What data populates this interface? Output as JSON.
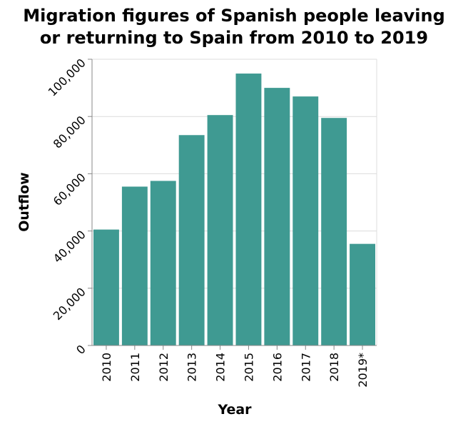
{
  "chart_data": {
    "type": "bar",
    "title_lines": [
      "Migration figures of Spanish people leaving",
      "or returning to Spain from 2010 to 2019"
    ],
    "xlabel": "Year",
    "ylabel": "Outflow",
    "categories": [
      "2010",
      "2011",
      "2012",
      "2013",
      "2014",
      "2015",
      "2016",
      "2017",
      "2018",
      "2019*"
    ],
    "values": [
      40500,
      55500,
      57500,
      73500,
      80500,
      95000,
      90000,
      87000,
      79500,
      35500
    ],
    "ylim": [
      0,
      100000
    ],
    "yticks": [
      0,
      20000,
      40000,
      60000,
      80000,
      100000
    ],
    "ytick_labels": [
      "0",
      "20,000",
      "40,000",
      "60,000",
      "80,000",
      "100,000"
    ],
    "grid": true,
    "bar_color": "#3f9a92"
  }
}
